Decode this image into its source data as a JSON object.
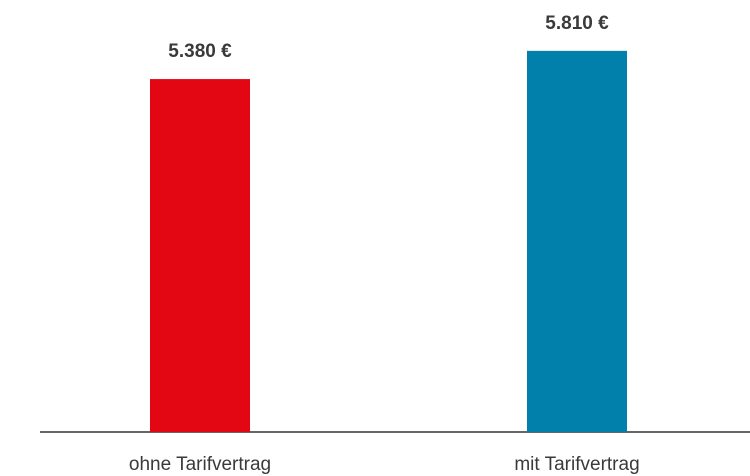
{
  "chart_data": {
    "type": "bar",
    "categories": [
      "ohne Tarifvertrag",
      "mit Tarifvertrag"
    ],
    "values": [
      5380,
      5810
    ],
    "value_labels": [
      "5.380 €",
      "5.810 €"
    ],
    "colors": [
      "#e30613",
      "#0080aa"
    ],
    "ylim": [
      0,
      6000
    ]
  }
}
